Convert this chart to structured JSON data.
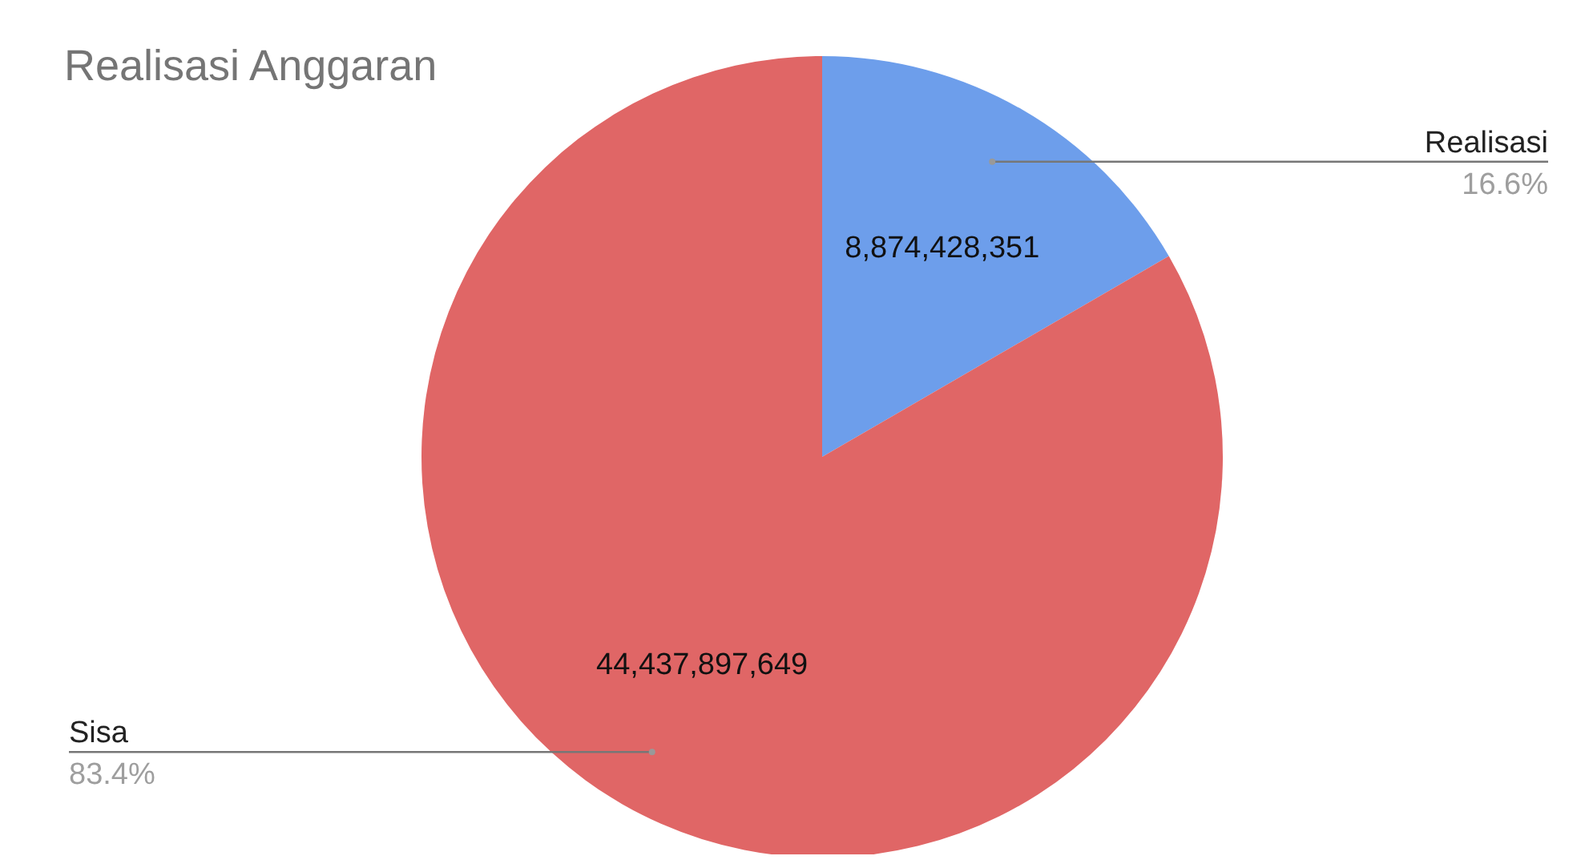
{
  "chart_data": {
    "type": "pie",
    "title": "Realisasi Anggaran",
    "categories": [
      "Realisasi",
      "Sisa"
    ],
    "values": [
      8874428351,
      44437897649
    ],
    "colors": [
      "#6d9eeb",
      "#e06666"
    ],
    "value_labels": [
      "8,874,428,351",
      "44,437,897,649"
    ],
    "legend": false,
    "annotations": [
      {
        "text": "16.6%",
        "x": "Realisasi"
      },
      {
        "text": "83.4%",
        "x": "Sisa"
      }
    ]
  }
}
